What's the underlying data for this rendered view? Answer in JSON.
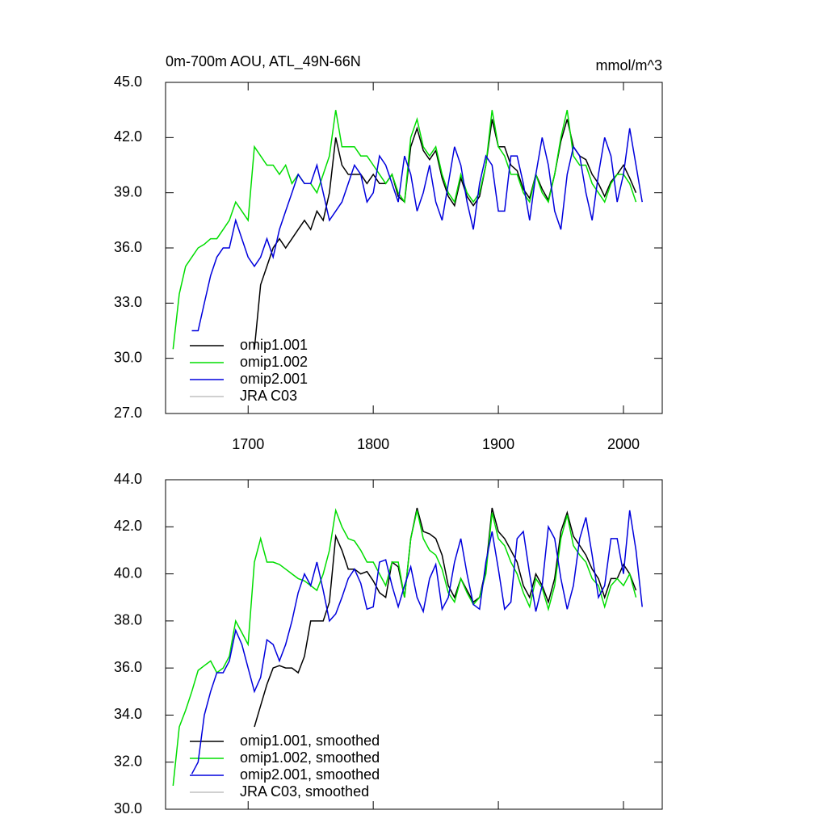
{
  "chart_data": [
    {
      "type": "line",
      "title": "0m-700m AOU, ATL_49N-66N",
      "subtitle": "mmol/m^3",
      "x": [
        1640,
        1645,
        1650,
        1655,
        1660,
        1665,
        1670,
        1675,
        1680,
        1685,
        1690,
        1695,
        1700,
        1705,
        1710,
        1715,
        1720,
        1725,
        1730,
        1735,
        1740,
        1745,
        1750,
        1755,
        1760,
        1765,
        1770,
        1775,
        1780,
        1785,
        1790,
        1795,
        1800,
        1805,
        1810,
        1815,
        1820,
        1825,
        1830,
        1835,
        1840,
        1845,
        1850,
        1855,
        1860,
        1865,
        1870,
        1875,
        1880,
        1885,
        1890,
        1895,
        1900,
        1905,
        1910,
        1915,
        1920,
        1925,
        1930,
        1935,
        1940,
        1945,
        1950,
        1955,
        1960,
        1965,
        1970,
        1975,
        1980,
        1985,
        1990,
        1995,
        2000,
        2005,
        2010,
        2015
      ],
      "series": [
        {
          "name": "omip1.001",
          "color": "#000000",
          "values": [
            null,
            null,
            null,
            null,
            null,
            null,
            null,
            null,
            null,
            null,
            null,
            null,
            null,
            30.5,
            34,
            35,
            36,
            36.5,
            36,
            36.5,
            37,
            37.5,
            37,
            38,
            37.5,
            39,
            42,
            40.5,
            40,
            40,
            40,
            39.5,
            40,
            39.5,
            39.5,
            40,
            38.8,
            38.5,
            41.5,
            42.5,
            41.3,
            40.8,
            41.3,
            39.8,
            38.8,
            38.3,
            39.8,
            38.8,
            38.3,
            38.8,
            40.5,
            43,
            41.5,
            41.5,
            40.5,
            40.2,
            39.2,
            38.7,
            40,
            39.2,
            38.6,
            40,
            41.8,
            43,
            41.5,
            41,
            40.8,
            40,
            39.5,
            38.8,
            39.6,
            40,
            40.5,
            39.8,
            39,
            null
          ]
        },
        {
          "name": "omip1.002",
          "color": "#00dd00",
          "values": [
            30.5,
            33.5,
            35,
            35.5,
            36,
            36.2,
            36.5,
            36.5,
            37,
            37.5,
            38.5,
            38,
            37.5,
            41.5,
            41,
            40.5,
            40.5,
            40,
            40.5,
            39.5,
            40,
            39.5,
            39.5,
            39,
            40,
            41,
            43.5,
            41.5,
            41.5,
            41.5,
            41,
            41,
            40.5,
            40,
            39.5,
            40,
            39,
            38.5,
            42,
            43,
            41.5,
            41,
            41.5,
            40,
            39,
            38.5,
            40,
            39,
            38.5,
            39,
            40.5,
            43.5,
            41.5,
            41,
            40,
            40,
            39,
            38.5,
            40,
            39,
            38.5,
            40,
            42,
            43.5,
            41,
            40.5,
            40.5,
            39.5,
            39,
            38.5,
            39.5,
            40,
            40,
            39.5,
            38.5,
            null
          ]
        },
        {
          "name": "omip2.001",
          "color": "#0000dd",
          "values": [
            null,
            null,
            null,
            31.5,
            31.5,
            33,
            34.5,
            35.5,
            36,
            36,
            37.5,
            36.5,
            35.5,
            35,
            35.5,
            36.5,
            35.5,
            37,
            38,
            39,
            40,
            39.5,
            39.5,
            40.5,
            39,
            37.5,
            38,
            38.5,
            39.5,
            40.5,
            40,
            38.5,
            39,
            41,
            40.5,
            39.5,
            38.5,
            41,
            40,
            38,
            39,
            40.5,
            38.5,
            37.5,
            39.5,
            41.5,
            40.5,
            38.5,
            37,
            39.5,
            41,
            40.5,
            38,
            38,
            41,
            41,
            39.5,
            37.5,
            40,
            42,
            40.5,
            38,
            37,
            40,
            41.5,
            41,
            39,
            37.5,
            40,
            42,
            41,
            38.5,
            40,
            42.5,
            40.5,
            38.5
          ]
        },
        {
          "name": "JRA C03",
          "color": "#c0c0c0",
          "values": [
            null,
            null,
            null,
            null,
            null,
            null,
            null,
            null,
            null,
            null,
            null,
            null,
            null,
            null,
            null,
            null,
            null,
            null,
            null,
            null,
            null,
            null,
            null,
            null,
            null,
            null,
            null,
            null,
            null,
            null,
            null,
            null,
            null,
            null,
            null,
            null,
            null,
            null,
            null,
            null,
            null,
            null,
            null,
            null,
            null,
            null,
            null,
            null,
            null,
            null,
            null,
            null,
            null,
            null,
            null,
            null,
            null,
            null,
            null,
            null,
            null,
            null,
            null,
            null,
            null,
            null,
            null,
            null,
            null,
            null,
            null,
            null,
            null,
            null,
            null,
            null
          ]
        }
      ],
      "xlim": [
        1634,
        2031
      ],
      "ylim": [
        27,
        45
      ],
      "xticks": [
        1700,
        1800,
        1900,
        2000
      ],
      "yticks": [
        {
          "value": 27,
          "label": "27.0"
        },
        {
          "value": 30,
          "label": "30.0"
        },
        {
          "value": 33,
          "label": "33.0"
        },
        {
          "value": 36,
          "label": "36.0"
        },
        {
          "value": 39,
          "label": "39.0"
        },
        {
          "value": 42,
          "label": "42.0"
        },
        {
          "value": 45,
          "label": "45.0"
        }
      ],
      "legend": "lower left"
    },
    {
      "type": "line",
      "x": [
        1640,
        1645,
        1650,
        1655,
        1660,
        1665,
        1670,
        1675,
        1680,
        1685,
        1690,
        1695,
        1700,
        1705,
        1710,
        1715,
        1720,
        1725,
        1730,
        1735,
        1740,
        1745,
        1750,
        1755,
        1760,
        1765,
        1770,
        1775,
        1780,
        1785,
        1790,
        1795,
        1800,
        1805,
        1810,
        1815,
        1820,
        1825,
        1830,
        1835,
        1840,
        1845,
        1850,
        1855,
        1860,
        1865,
        1870,
        1875,
        1880,
        1885,
        1890,
        1895,
        1900,
        1905,
        1910,
        1915,
        1920,
        1925,
        1930,
        1935,
        1940,
        1945,
        1950,
        1955,
        1960,
        1965,
        1970,
        1975,
        1980,
        1985,
        1990,
        1995,
        2000,
        2005,
        2010,
        2015
      ],
      "series": [
        {
          "name": "omip1.001, smoothed",
          "color": "#000000",
          "values": [
            null,
            null,
            null,
            null,
            null,
            null,
            null,
            null,
            null,
            null,
            null,
            null,
            null,
            33.5,
            34.4,
            35.3,
            36,
            36.1,
            36,
            36,
            35.8,
            36.5,
            38,
            38,
            38,
            38.8,
            41.6,
            41,
            40.2,
            40.2,
            40,
            40.1,
            39.7,
            39.2,
            39,
            40.5,
            40.3,
            39,
            41.5,
            42.8,
            41.8,
            41.7,
            41.5,
            40.8,
            39.5,
            39,
            39.8,
            39.3,
            38.8,
            39,
            40.2,
            42.8,
            41.8,
            41.5,
            41,
            40.5,
            39.5,
            39,
            40,
            39.5,
            38.8,
            39.8,
            41.8,
            42.6,
            41.6,
            41.2,
            40.8,
            40.2,
            39.8,
            39,
            39.8,
            39.8,
            40.4,
            40,
            39.3,
            null
          ]
        },
        {
          "name": "omip1.002, smoothed",
          "color": "#00dd00",
          "values": [
            31,
            33.5,
            34.2,
            35,
            35.9,
            36.1,
            36.3,
            35.8,
            36,
            36.5,
            38,
            37.5,
            37,
            40.5,
            41.5,
            40.5,
            40.5,
            40.4,
            40.2,
            40,
            39.8,
            39.7,
            39.5,
            39.3,
            40,
            41,
            42.7,
            42,
            41.5,
            41.4,
            41,
            40.5,
            40.5,
            40,
            39.5,
            40.5,
            40.5,
            39,
            41.5,
            42.7,
            41.5,
            41,
            40.8,
            40.2,
            39.2,
            38.8,
            39.8,
            39.2,
            38.7,
            39,
            40,
            42.6,
            41.5,
            41.2,
            40.5,
            40,
            39.2,
            38.6,
            39.8,
            39.4,
            38.5,
            39.5,
            41.5,
            42.5,
            41.2,
            40.8,
            40.5,
            39.8,
            39.5,
            38.6,
            39.5,
            39.8,
            39.5,
            40,
            39,
            null
          ]
        },
        {
          "name": "omip2.001, smoothed",
          "color": "#0000dd",
          "values": [
            null,
            null,
            null,
            31.5,
            32,
            34,
            35,
            35.8,
            35.8,
            36.3,
            37.6,
            37,
            36,
            35,
            35.6,
            37.2,
            37,
            36.3,
            37,
            38,
            39.2,
            40,
            39.5,
            40.5,
            39.3,
            38,
            38.3,
            39,
            39.8,
            40.2,
            39.6,
            38.5,
            38.6,
            40.5,
            40.6,
            39.5,
            38.6,
            39.5,
            40.3,
            39,
            38.4,
            39.8,
            40.4,
            38.5,
            39,
            40.5,
            41.5,
            40,
            38.7,
            38.5,
            40.5,
            41.8,
            40.2,
            38.5,
            38.8,
            41.5,
            41.8,
            40,
            38.4,
            39.5,
            42,
            41.5,
            39.8,
            38.5,
            39.5,
            41.5,
            42.4,
            40.8,
            39,
            39.5,
            41.5,
            41.5,
            40,
            42.7,
            41,
            38.6
          ]
        },
        {
          "name": "JRA C03, smoothed",
          "color": "#c0c0c0",
          "values": [
            null,
            null,
            null,
            null,
            null,
            null,
            null,
            null,
            null,
            null,
            null,
            null,
            null,
            null,
            null,
            null,
            null,
            null,
            null,
            null,
            null,
            null,
            null,
            null,
            null,
            null,
            null,
            null,
            null,
            null,
            null,
            null,
            null,
            null,
            null,
            null,
            null,
            null,
            null,
            null,
            null,
            null,
            null,
            null,
            null,
            null,
            null,
            null,
            null,
            null,
            null,
            null,
            null,
            null,
            null,
            null,
            null,
            null,
            null,
            null,
            null,
            null,
            null,
            null,
            null,
            null,
            null,
            null,
            null,
            null,
            null,
            null,
            null,
            null,
            null,
            null
          ]
        }
      ],
      "xlim": [
        1634,
        2031
      ],
      "ylim": [
        30,
        44
      ],
      "xticks": [
        1700,
        1800,
        1900,
        2000
      ],
      "xticklabels": false,
      "yticks": [
        {
          "value": 30,
          "label": "30.0"
        },
        {
          "value": 32,
          "label": "32.0"
        },
        {
          "value": 34,
          "label": "34.0"
        },
        {
          "value": 36,
          "label": "36.0"
        },
        {
          "value": 38,
          "label": "38.0"
        },
        {
          "value": 40,
          "label": "40.0"
        },
        {
          "value": 42,
          "label": "42.0"
        },
        {
          "value": 44,
          "label": "44.0"
        }
      ],
      "legend": "lower left"
    }
  ]
}
